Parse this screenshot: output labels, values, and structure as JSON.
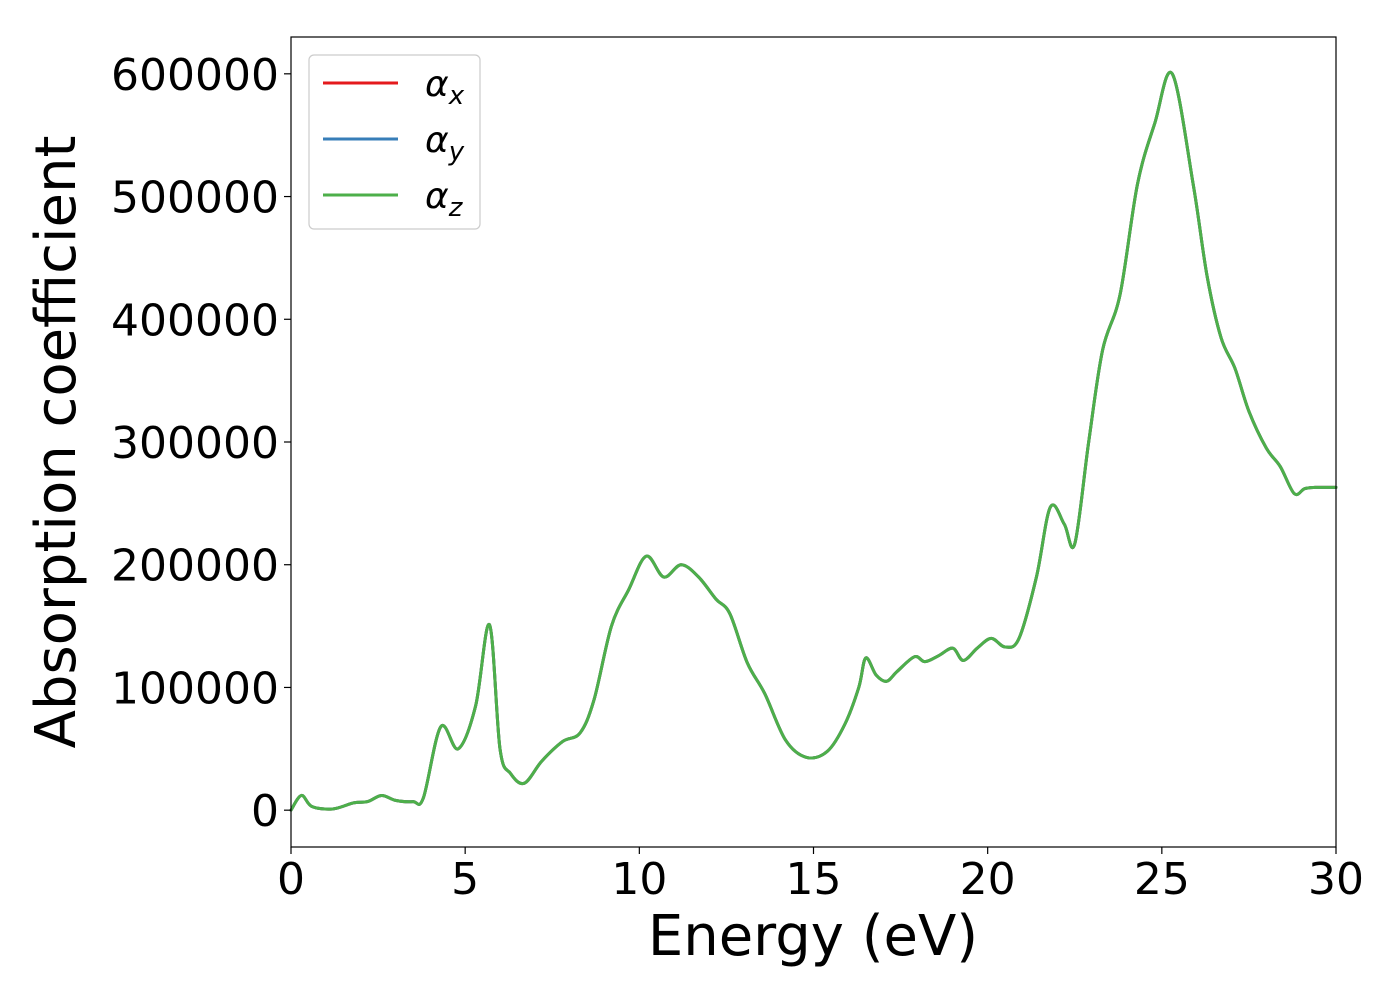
{
  "chart_data": {
    "type": "line",
    "title": "",
    "xlabel": "Energy (eV)",
    "ylabel": "Absorption coefficient",
    "xlim": [
      0,
      30
    ],
    "ylim": [
      -30000,
      630000
    ],
    "xticks": [
      0,
      5,
      10,
      15,
      20,
      25,
      30
    ],
    "yticks": [
      0,
      100000,
      200000,
      300000,
      400000,
      500000,
      600000
    ],
    "grid": false,
    "legend_position": "top-left",
    "x": [
      0,
      0.3,
      0.6,
      1.2,
      1.8,
      2.2,
      2.6,
      3.0,
      3.5,
      3.8,
      4.3,
      4.8,
      5.3,
      5.7,
      6.0,
      6.3,
      6.7,
      7.2,
      7.8,
      8.3,
      8.7,
      9.2,
      9.7,
      10.2,
      10.7,
      11.2,
      11.7,
      12.2,
      12.6,
      13.1,
      13.6,
      14.2,
      14.8,
      15.4,
      15.9,
      16.3,
      16.5,
      16.8,
      17.1,
      17.4,
      17.9,
      18.2,
      18.6,
      19.0,
      19.3,
      19.7,
      20.1,
      20.5,
      20.9,
      21.4,
      21.8,
      22.2,
      22.5,
      22.9,
      23.3,
      23.8,
      24.3,
      24.8,
      25.3,
      25.9,
      26.3,
      26.7,
      27.1,
      27.5,
      28.0,
      28.4,
      28.8,
      29.1,
      29.4,
      29.7,
      30.0
    ],
    "series": [
      {
        "name": "αx",
        "color": "#e41a1c",
        "values": [
          0,
          12000,
          3000,
          1000,
          6000,
          7000,
          12000,
          8000,
          7000,
          10000,
          68000,
          50000,
          85000,
          151000,
          50000,
          30000,
          22000,
          40000,
          56000,
          63000,
          90000,
          150000,
          180000,
          207000,
          190000,
          200000,
          190000,
          172000,
          160000,
          120000,
          95000,
          57000,
          43000,
          48000,
          70000,
          100000,
          124000,
          110000,
          105000,
          113000,
          125000,
          121000,
          126000,
          132000,
          122000,
          132000,
          140000,
          133000,
          140000,
          190000,
          247000,
          233000,
          217000,
          300000,
          375000,
          420000,
          510000,
          560000,
          600000,
          510000,
          435000,
          385000,
          360000,
          325000,
          295000,
          280000,
          258000,
          262000,
          263000,
          263000,
          263000
        ]
      },
      {
        "name": "αy",
        "color": "#377eb8",
        "values": [
          0,
          12000,
          3000,
          1000,
          6000,
          7000,
          12000,
          8000,
          7000,
          10000,
          68000,
          50000,
          85000,
          151000,
          50000,
          30000,
          22000,
          40000,
          56000,
          63000,
          90000,
          150000,
          180000,
          207000,
          190000,
          200000,
          190000,
          172000,
          160000,
          120000,
          95000,
          57000,
          43000,
          48000,
          70000,
          100000,
          124000,
          110000,
          105000,
          113000,
          125000,
          121000,
          126000,
          132000,
          122000,
          132000,
          140000,
          133000,
          140000,
          190000,
          247000,
          233000,
          217000,
          300000,
          375000,
          420000,
          510000,
          560000,
          600000,
          510000,
          435000,
          385000,
          360000,
          325000,
          295000,
          280000,
          258000,
          262000,
          263000,
          263000,
          263000
        ]
      },
      {
        "name": "αz",
        "color": "#4daf4a",
        "values": [
          0,
          12000,
          3000,
          1000,
          6000,
          7000,
          12000,
          8000,
          7000,
          10000,
          68000,
          50000,
          85000,
          151000,
          50000,
          30000,
          22000,
          40000,
          56000,
          63000,
          90000,
          150000,
          180000,
          207000,
          190000,
          200000,
          190000,
          172000,
          160000,
          120000,
          95000,
          57000,
          43000,
          48000,
          70000,
          100000,
          124000,
          110000,
          105000,
          113000,
          125000,
          121000,
          126000,
          132000,
          122000,
          132000,
          140000,
          133000,
          140000,
          190000,
          247000,
          233000,
          217000,
          300000,
          375000,
          420000,
          510000,
          560000,
          600000,
          510000,
          435000,
          385000,
          360000,
          325000,
          295000,
          280000,
          258000,
          262000,
          263000,
          263000,
          263000
        ]
      }
    ]
  }
}
